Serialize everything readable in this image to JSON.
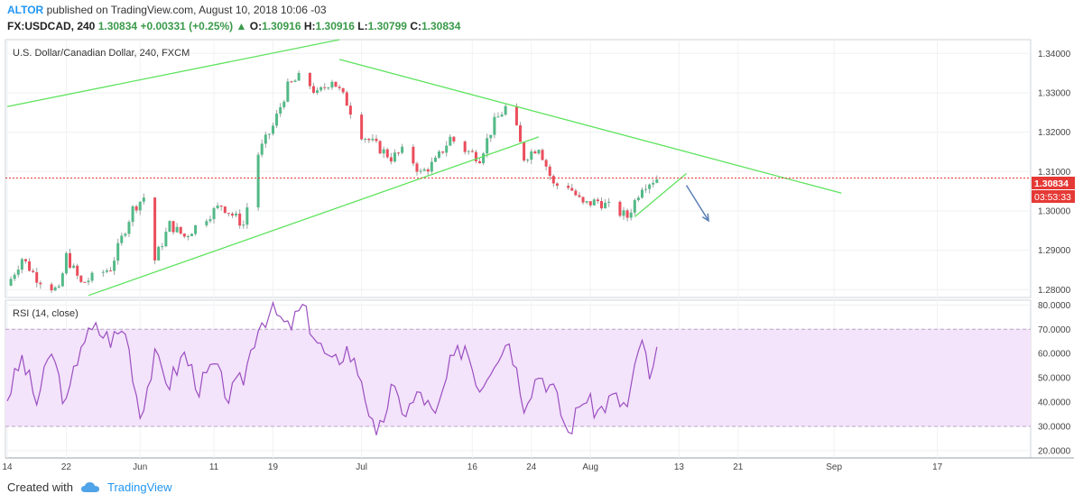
{
  "header": {
    "author": "ALTOR",
    "published_text": "published on TradingView.com, August 10, 2018 10:06 -03",
    "symbol": "FX:USDCAD, 240",
    "last": "1.30834",
    "change": "+0.00331 (+0.25%)",
    "o_label": "O:",
    "o_val": "1.30916",
    "h_label": "H:",
    "h_val": "1.30916",
    "l_label": "L:",
    "l_val": "1.30799",
    "c_label": "C:",
    "c_val": "1.30834"
  },
  "footer": {
    "created_with": "Created with",
    "brand": "TradingView"
  },
  "colors": {
    "bull": "#53b987",
    "bear": "#eb4d5c",
    "trendline": "#5ee35e",
    "rsi_line": "#9b4fc0",
    "rsi_band": "#f3e3fb",
    "price_line": "#e53935",
    "arrow": "#5b7fb5"
  },
  "chart_data": [
    {
      "type": "candlestick",
      "title": "U.S. Dollar/Canadian Dollar, 240, FXCM",
      "ylim": [
        1.278,
        1.3435
      ],
      "yticks": [
        "1.28000",
        "1.29000",
        "1.30000",
        "1.31000",
        "1.32000",
        "1.33000",
        "1.34000"
      ],
      "xticks": [
        "14",
        "22",
        "Jun",
        "11",
        "19",
        "Jul",
        "16",
        "24",
        "Aug",
        "13",
        "21",
        "Sep",
        "17"
      ],
      "last_price_label": "1.30834",
      "countdown_label": "03:53:33",
      "anchors": [
        {
          "date": "May 14",
          "price": 1.281
        },
        {
          "date": "May 16",
          "price": 1.288
        },
        {
          "date": "May 18",
          "price": 1.283
        },
        {
          "date": "May 21",
          "price": 1.2795
        },
        {
          "date": "May 22",
          "price": 1.2885
        },
        {
          "date": "May 24",
          "price": 1.2815
        },
        {
          "date": "May 28",
          "price": 1.2855
        },
        {
          "date": "May 31",
          "price": 1.3005
        },
        {
          "date": "Jun 2",
          "price": 1.3045
        },
        {
          "date": "Jun 3",
          "price": 1.2875
        },
        {
          "date": "Jun 5",
          "price": 1.2965
        },
        {
          "date": "Jun 7",
          "price": 1.2935
        },
        {
          "date": "Jun 10",
          "price": 1.2985
        },
        {
          "date": "Jun 12",
          "price": 1.3015
        },
        {
          "date": "Jun 15",
          "price": 1.2965
        },
        {
          "date": "Jun 17",
          "price": 1.3145
        },
        {
          "date": "Jun 19",
          "price": 1.3215
        },
        {
          "date": "Jun 21",
          "price": 1.3315
        },
        {
          "date": "Jun 23",
          "price": 1.3345
        },
        {
          "date": "Jun 25",
          "price": 1.3295
        },
        {
          "date": "Jun 27",
          "price": 1.3335
        },
        {
          "date": "Jun 29",
          "price": 1.3275
        },
        {
          "date": "Jul 1",
          "price": 1.3195
        },
        {
          "date": "Jul 3",
          "price": 1.3165
        },
        {
          "date": "Jul 5",
          "price": 1.3135
        },
        {
          "date": "Jul 7",
          "price": 1.3155
        },
        {
          "date": "Jul 9",
          "price": 1.3095
        },
        {
          "date": "Jul 11",
          "price": 1.3125
        },
        {
          "date": "Jul 13",
          "price": 1.3185
        },
        {
          "date": "Jul 15",
          "price": 1.3155
        },
        {
          "date": "Jul 17",
          "price": 1.3135
        },
        {
          "date": "Jul 19",
          "price": 1.3225
        },
        {
          "date": "Jul 21",
          "price": 1.3275
        },
        {
          "date": "Jul 23",
          "price": 1.3135
        },
        {
          "date": "Jul 25",
          "price": 1.3165
        },
        {
          "date": "Jul 27",
          "price": 1.3065
        },
        {
          "date": "Jul 29",
          "price": 1.3065
        },
        {
          "date": "Jul 31",
          "price": 1.3015
        },
        {
          "date": "Aug 2",
          "price": 1.3025
        },
        {
          "date": "Aug 4",
          "price": 1.3005
        },
        {
          "date": "Aug 6",
          "price": 1.2985
        },
        {
          "date": "Aug 8",
          "price": 1.3065
        },
        {
          "date": "Aug 10",
          "price": 1.3083
        }
      ],
      "trendlines": [
        {
          "from": {
            "date": "May 14",
            "price": 1.3265
          },
          "to": {
            "date": "Jun 28",
            "price": 1.3435
          }
        },
        {
          "from": {
            "date": "May 25",
            "price": 1.2785
          },
          "to": {
            "date": "Jul 25",
            "price": 1.3188
          }
        },
        {
          "from": {
            "date": "Jun 28",
            "price": 1.3385
          },
          "to": {
            "date": "Sep 4",
            "price": 1.3045
          }
        },
        {
          "from": {
            "date": "Aug 7",
            "price": 1.2985
          },
          "to": {
            "date": "Aug 14",
            "price": 1.3095
          }
        }
      ],
      "arrow": {
        "from": {
          "date": "Aug 14",
          "price": 1.3065
        },
        "to": {
          "date": "Aug 17",
          "price": 1.2975
        }
      }
    },
    {
      "type": "line",
      "title": "RSI (14, close)",
      "ylim": [
        17,
        82
      ],
      "yticks": [
        "20.0000",
        "30.0000",
        "40.0000",
        "50.0000",
        "60.0000",
        "70.0000",
        "80.0000"
      ],
      "band": [
        30,
        70
      ],
      "anchors": [
        {
          "date": "May 14",
          "value": 42
        },
        {
          "date": "May 16",
          "value": 58
        },
        {
          "date": "May 18",
          "value": 40
        },
        {
          "date": "May 20",
          "value": 61
        },
        {
          "date": "May 22",
          "value": 38
        },
        {
          "date": "May 24",
          "value": 65
        },
        {
          "date": "May 26",
          "value": 70
        },
        {
          "date": "May 28",
          "value": 66
        },
        {
          "date": "May 30",
          "value": 70
        },
        {
          "date": "Jun 1",
          "value": 35
        },
        {
          "date": "Jun 3",
          "value": 58
        },
        {
          "date": "Jun 5",
          "value": 48
        },
        {
          "date": "Jun 7",
          "value": 60
        },
        {
          "date": "Jun 9",
          "value": 46
        },
        {
          "date": "Jun 11",
          "value": 55
        },
        {
          "date": "Jun 13",
          "value": 42
        },
        {
          "date": "Jun 15",
          "value": 50
        },
        {
          "date": "Jun 17",
          "value": 72
        },
        {
          "date": "Jun 19",
          "value": 78
        },
        {
          "date": "Jun 21",
          "value": 70
        },
        {
          "date": "Jun 23",
          "value": 79
        },
        {
          "date": "Jun 25",
          "value": 65
        },
        {
          "date": "Jun 27",
          "value": 55
        },
        {
          "date": "Jun 29",
          "value": 62
        },
        {
          "date": "Jul 1",
          "value": 50
        },
        {
          "date": "Jul 3",
          "value": 23
        },
        {
          "date": "Jul 5",
          "value": 45
        },
        {
          "date": "Jul 7",
          "value": 36
        },
        {
          "date": "Jul 9",
          "value": 44
        },
        {
          "date": "Jul 11",
          "value": 33
        },
        {
          "date": "Jul 13",
          "value": 55
        },
        {
          "date": "Jul 15",
          "value": 64
        },
        {
          "date": "Jul 17",
          "value": 46
        },
        {
          "date": "Jul 19",
          "value": 58
        },
        {
          "date": "Jul 21",
          "value": 66
        },
        {
          "date": "Jul 23",
          "value": 40
        },
        {
          "date": "Jul 25",
          "value": 52
        },
        {
          "date": "Jul 27",
          "value": 45
        },
        {
          "date": "Jul 29",
          "value": 27
        },
        {
          "date": "Jul 31",
          "value": 42
        },
        {
          "date": "Aug 2",
          "value": 36
        },
        {
          "date": "Aug 4",
          "value": 42
        },
        {
          "date": "Aug 6",
          "value": 38
        },
        {
          "date": "Aug 8",
          "value": 67
        },
        {
          "date": "Aug 9",
          "value": 48
        },
        {
          "date": "Aug 10",
          "value": 59
        }
      ]
    }
  ]
}
